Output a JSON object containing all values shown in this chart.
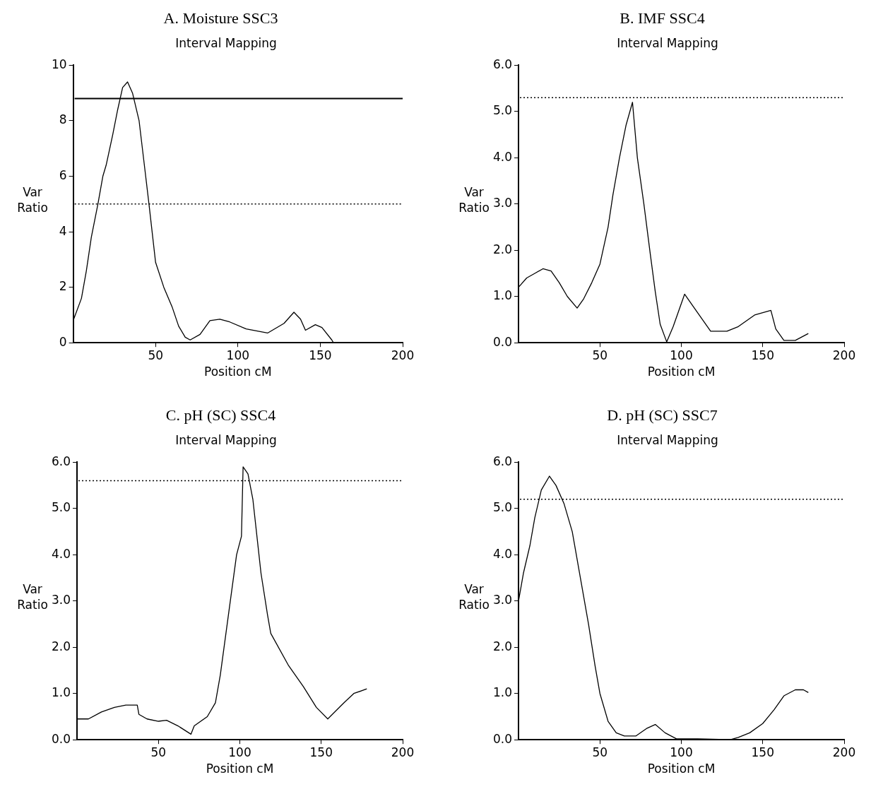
{
  "chart_data": [
    {
      "type": "line",
      "title": "A. Moisture SSC3",
      "subtitle": "Interval Mapping",
      "xlabel": "Position cM",
      "ylabel": "Var Ratio",
      "xlim": [
        0,
        200
      ],
      "xticks": [
        50,
        100,
        150,
        200
      ],
      "ylim": [
        0,
        10
      ],
      "yticks": [
        0,
        2,
        4,
        6,
        8,
        10
      ],
      "grid": false,
      "legend": false,
      "marker": "none",
      "line_style": "solid",
      "series": [
        {
          "color": "#000000",
          "x": [
            0,
            5,
            8,
            11,
            15,
            18,
            20,
            24,
            27,
            30,
            33,
            36,
            40,
            44,
            46,
            50,
            55,
            60,
            64,
            68,
            71,
            77,
            83,
            89,
            95,
            105,
            118,
            128,
            134,
            138,
            141,
            147,
            151,
            157,
            158
          ],
          "values": [
            0.8,
            1.6,
            2.6,
            3.8,
            5.0,
            6.0,
            6.4,
            7.5,
            8.4,
            9.2,
            9.4,
            9.0,
            8.0,
            6.0,
            5.0,
            2.9,
            2.0,
            1.3,
            0.6,
            0.2,
            0.1,
            0.3,
            0.8,
            0.85,
            0.75,
            0.5,
            0.35,
            0.7,
            1.1,
            0.85,
            0.45,
            0.65,
            0.55,
            0.1,
            0
          ]
        }
      ],
      "ref_lines": [
        {
          "axis": "y",
          "value": 8.8,
          "line_style": "solid"
        },
        {
          "axis": "y",
          "value": 5.0,
          "line_style": "dotted"
        }
      ]
    },
    {
      "type": "line",
      "title": "B. IMF SSC4",
      "subtitle": "Interval Mapping",
      "xlabel": "Position cM",
      "ylabel": "Var Ratio",
      "xlim": [
        0,
        200
      ],
      "xticks": [
        50,
        100,
        150,
        200
      ],
      "ylim": [
        0,
        6
      ],
      "yticks": [
        {
          "value": 0,
          "label": "0.0"
        },
        {
          "value": 1,
          "label": "1.0"
        },
        {
          "value": 2,
          "label": "2.0"
        },
        {
          "value": 3,
          "label": "3.0"
        },
        {
          "value": 4,
          "label": "4.0"
        },
        {
          "value": 5,
          "label": "5.0"
        },
        {
          "value": 6,
          "label": "6.0"
        }
      ],
      "grid": false,
      "legend": false,
      "marker": "none",
      "line_style": "solid",
      "series": [
        {
          "color": "#000000",
          "x": [
            0,
            5,
            10,
            15,
            20,
            25,
            30,
            36,
            40,
            45,
            50,
            55,
            58,
            62,
            66,
            70,
            73,
            77,
            81,
            84,
            87,
            91,
            95,
            102,
            108,
            118,
            128,
            135,
            145,
            155,
            158,
            163,
            170,
            178
          ],
          "values": [
            1.2,
            1.4,
            1.5,
            1.6,
            1.55,
            1.3,
            1.0,
            0.75,
            0.95,
            1.3,
            1.7,
            2.5,
            3.2,
            4.0,
            4.7,
            5.2,
            4.0,
            3.0,
            1.9,
            1.1,
            0.4,
            0.02,
            0.35,
            1.05,
            0.75,
            0.25,
            0.25,
            0.35,
            0.6,
            0.7,
            0.3,
            0.05,
            0.05,
            0.2
          ]
        }
      ],
      "ref_lines": [
        {
          "axis": "y",
          "value": 5.3,
          "line_style": "dotted"
        }
      ]
    },
    {
      "type": "line",
      "title": "C. pH (SC) SSC4",
      "subtitle": "Interval Mapping",
      "xlabel": "Position cM",
      "ylabel": "Var Ratio",
      "xlim": [
        0,
        200
      ],
      "xticks": [
        50,
        100,
        150,
        200
      ],
      "ylim": [
        0,
        6
      ],
      "yticks": [
        {
          "value": 0,
          "label": "0.0"
        },
        {
          "value": 1,
          "label": "1.0"
        },
        {
          "value": 2,
          "label": "2.0"
        },
        {
          "value": 3,
          "label": "3.0"
        },
        {
          "value": 4,
          "label": "4.0"
        },
        {
          "value": 5,
          "label": "5.0"
        },
        {
          "value": 6,
          "label": "6.0"
        }
      ],
      "grid": false,
      "legend": false,
      "marker": "none",
      "line_style": "solid",
      "series": [
        {
          "color": "#000000",
          "x": [
            0,
            7,
            15,
            23,
            30,
            37,
            38,
            43,
            50,
            55,
            62,
            70,
            72,
            80,
            85,
            88,
            93,
            98,
            101,
            102,
            105,
            108,
            113,
            117,
            119,
            130,
            139,
            147,
            154,
            164,
            170,
            178
          ],
          "values": [
            0.45,
            0.45,
            0.6,
            0.7,
            0.75,
            0.75,
            0.55,
            0.45,
            0.4,
            0.42,
            0.3,
            0.12,
            0.3,
            0.5,
            0.8,
            1.4,
            2.7,
            4.0,
            4.4,
            5.9,
            5.75,
            5.2,
            3.6,
            2.7,
            2.3,
            1.6,
            1.15,
            0.7,
            0.45,
            0.8,
            1.0,
            1.1
          ]
        }
      ],
      "ref_lines": [
        {
          "axis": "y",
          "value": 5.6,
          "line_style": "dotted"
        }
      ]
    },
    {
      "type": "line",
      "title": "D. pH (SC) SSC7",
      "subtitle": "Interval Mapping",
      "xlabel": "Position cM",
      "ylabel": "Var Ratio",
      "xlim": [
        0,
        200
      ],
      "xticks": [
        50,
        100,
        150,
        200
      ],
      "ylim": [
        0,
        6
      ],
      "yticks": [
        {
          "value": 0,
          "label": "0.0"
        },
        {
          "value": 1,
          "label": "1.0"
        },
        {
          "value": 2,
          "label": "2.0"
        },
        {
          "value": 3,
          "label": "3.0"
        },
        {
          "value": 4,
          "label": "4.0"
        },
        {
          "value": 5,
          "label": "5.0"
        },
        {
          "value": 6,
          "label": "6.0"
        }
      ],
      "grid": false,
      "legend": false,
      "marker": "none",
      "line_style": "solid",
      "series": [
        {
          "color": "#000000",
          "x": [
            0,
            3,
            7,
            10,
            14,
            19,
            23,
            28,
            33,
            38,
            43,
            47,
            50,
            55,
            60,
            65,
            72,
            79,
            84,
            90,
            97,
            103,
            110,
            130,
            135,
            142,
            150,
            157,
            163,
            170,
            175,
            178
          ],
          "values": [
            3.0,
            3.6,
            4.2,
            4.8,
            5.4,
            5.7,
            5.5,
            5.1,
            4.5,
            3.5,
            2.5,
            1.6,
            1.0,
            0.4,
            0.15,
            0.08,
            0.08,
            0.25,
            0.33,
            0.15,
            0.02,
            0.02,
            0.02,
            0,
            0.05,
            0.15,
            0.35,
            0.65,
            0.95,
            1.08,
            1.08,
            1.02
          ]
        }
      ],
      "ref_lines": [
        {
          "axis": "y",
          "value": 5.2,
          "line_style": "dotted"
        }
      ]
    }
  ]
}
